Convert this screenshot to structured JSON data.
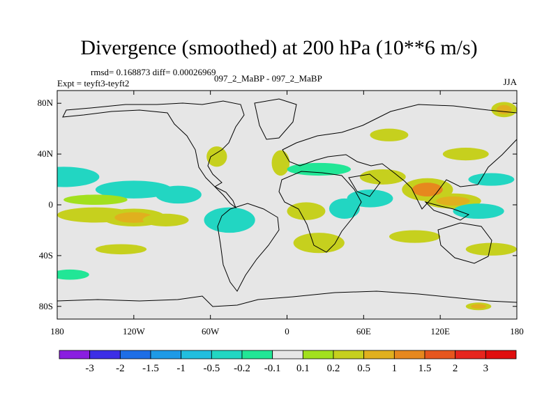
{
  "chart_data": {
    "type": "heatmap",
    "title": "Divergence (smoothed) at 200 hPa (10**6 m/s)",
    "stats_text": "rmsd= 0.168873 diff= 0.00026969",
    "expt_text": "Expt = teyft3-teyft2",
    "comparison_text": "097_2_MaBP - 097_2_MaBP",
    "season": "JJA",
    "x_ticks": [
      "180",
      "120W",
      "60W",
      "0",
      "60E",
      "120E",
      "180"
    ],
    "x_tick_values": [
      -180,
      -120,
      -60,
      0,
      60,
      120,
      180
    ],
    "y_ticks": [
      "80N",
      "40N",
      "0",
      "40S",
      "80S"
    ],
    "y_tick_values": [
      80,
      40,
      0,
      -40,
      -80
    ],
    "xlim": [
      -180,
      180
    ],
    "ylim": [
      -90,
      90
    ],
    "colorbar": {
      "labels": [
        "-3",
        "-2",
        "-1.5",
        "-1",
        "-0.5",
        "-0.2",
        "-0.1",
        "0.1",
        "0.2",
        "0.5",
        "1",
        "1.5",
        "2",
        "3"
      ],
      "colors": [
        "#8a1ee0",
        "#3c2ee6",
        "#1e6ee6",
        "#1e9ae6",
        "#22bede",
        "#22d6c2",
        "#22e696",
        "#e6e6e6",
        "#a2e01e",
        "#c6d01e",
        "#e0b01e",
        "#e6881e",
        "#e6561e",
        "#e6261e",
        "#e00e0e"
      ]
    },
    "features": [
      {
        "lon": -175,
        "lat": 22,
        "rlon": 28,
        "rlat": 8,
        "v": -0.3
      },
      {
        "lon": -120,
        "lat": 12,
        "rlon": 30,
        "rlat": 7,
        "v": -0.4
      },
      {
        "lon": -85,
        "lat": 8,
        "rlon": 18,
        "rlat": 7,
        "v": -0.3
      },
      {
        "lon": -150,
        "lat": 4,
        "rlon": 25,
        "rlat": 4,
        "v": 0.15
      },
      {
        "lon": -150,
        "lat": -8,
        "rlon": 30,
        "rlat": 6,
        "v": 0.3
      },
      {
        "lon": -120,
        "lat": -10,
        "rlon": 25,
        "rlat": 7,
        "v": 0.6
      },
      {
        "lon": -95,
        "lat": -12,
        "rlon": 18,
        "rlat": 5,
        "v": 0.35
      },
      {
        "lon": -45,
        "lat": -12,
        "rlon": 20,
        "rlat": 10,
        "v": -0.3
      },
      {
        "lon": -55,
        "lat": 38,
        "rlon": 8,
        "rlat": 8,
        "v": 0.2
      },
      {
        "lon": -5,
        "lat": 33,
        "rlon": 7,
        "rlat": 10,
        "v": 0.25
      },
      {
        "lon": 25,
        "lat": 28,
        "rlon": 25,
        "rlat": 5,
        "v": -0.2
      },
      {
        "lon": 15,
        "lat": -5,
        "rlon": 15,
        "rlat": 7,
        "v": 0.3
      },
      {
        "lon": 45,
        "lat": -3,
        "rlon": 12,
        "rlat": 8,
        "v": -0.3
      },
      {
        "lon": 25,
        "lat": -30,
        "rlon": 20,
        "rlat": 8,
        "v": 0.35
      },
      {
        "lon": 75,
        "lat": 22,
        "rlon": 18,
        "rlat": 6,
        "v": 0.2
      },
      {
        "lon": 65,
        "lat": 5,
        "rlon": 18,
        "rlat": 7,
        "v": -0.35
      },
      {
        "lon": 110,
        "lat": 12,
        "rlon": 20,
        "rlat": 9,
        "v": 1.0
      },
      {
        "lon": 130,
        "lat": 3,
        "rlon": 22,
        "rlat": 6,
        "v": 0.6
      },
      {
        "lon": 160,
        "lat": 20,
        "rlon": 18,
        "rlat": 5,
        "v": -0.25
      },
      {
        "lon": 150,
        "lat": -5,
        "rlon": 20,
        "rlat": 6,
        "v": -0.35
      },
      {
        "lon": 100,
        "lat": -25,
        "rlon": 20,
        "rlat": 5,
        "v": 0.3
      },
      {
        "lon": 160,
        "lat": -35,
        "rlon": 20,
        "rlat": 5,
        "v": 0.2
      },
      {
        "lon": 80,
        "lat": 55,
        "rlon": 15,
        "rlat": 5,
        "v": 0.2
      },
      {
        "lon": 140,
        "lat": 40,
        "rlon": 18,
        "rlat": 5,
        "v": 0.25
      },
      {
        "lon": 170,
        "lat": 75,
        "rlon": 10,
        "rlat": 6,
        "v": 0.6
      },
      {
        "lon": 150,
        "lat": -80,
        "rlon": 10,
        "rlat": 3,
        "v": 0.8
      },
      {
        "lon": -130,
        "lat": -35,
        "rlon": 20,
        "rlat": 4,
        "v": 0.2
      },
      {
        "lon": -170,
        "lat": -55,
        "rlon": 15,
        "rlat": 4,
        "v": -0.2
      }
    ]
  }
}
